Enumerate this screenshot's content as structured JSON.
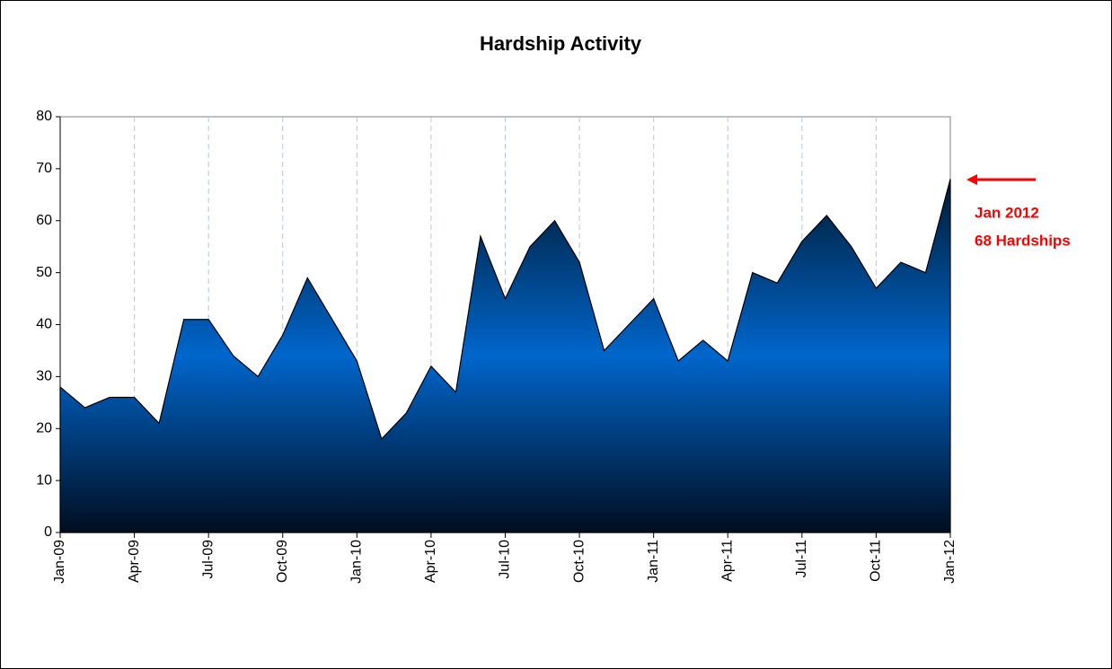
{
  "chart_data": {
    "type": "area",
    "title": "Hardship Activity",
    "categories": [
      "Jan-09",
      null,
      null,
      "Apr-09",
      null,
      null,
      "Jul-09",
      null,
      null,
      "Oct-09",
      null,
      null,
      "Jan-10",
      null,
      null,
      "Apr-10",
      null,
      null,
      "Jul-10",
      null,
      null,
      "Oct-10",
      null,
      null,
      "Jan-11",
      null,
      null,
      "Apr-11",
      null,
      null,
      "Jul-11",
      null,
      null,
      "Oct-11",
      null,
      null,
      "Jan-12"
    ],
    "values": [
      28,
      24,
      26,
      26,
      21,
      41,
      41,
      34,
      30,
      38,
      49,
      41,
      33,
      18,
      23,
      32,
      27,
      57,
      45,
      55,
      60,
      52,
      35,
      40,
      45,
      33,
      37,
      33,
      50,
      48,
      56,
      61,
      55,
      47,
      52,
      50,
      68
    ],
    "color": "#0066cc",
    "ylim": [
      0,
      80
    ],
    "yticks": [
      0,
      10,
      20,
      30,
      40,
      50,
      60,
      70,
      80
    ],
    "xgrid": true,
    "annotation": [
      "Jan 2012",
      "68 Hardships"
    ],
    "annotation_color": "#ff0000"
  }
}
